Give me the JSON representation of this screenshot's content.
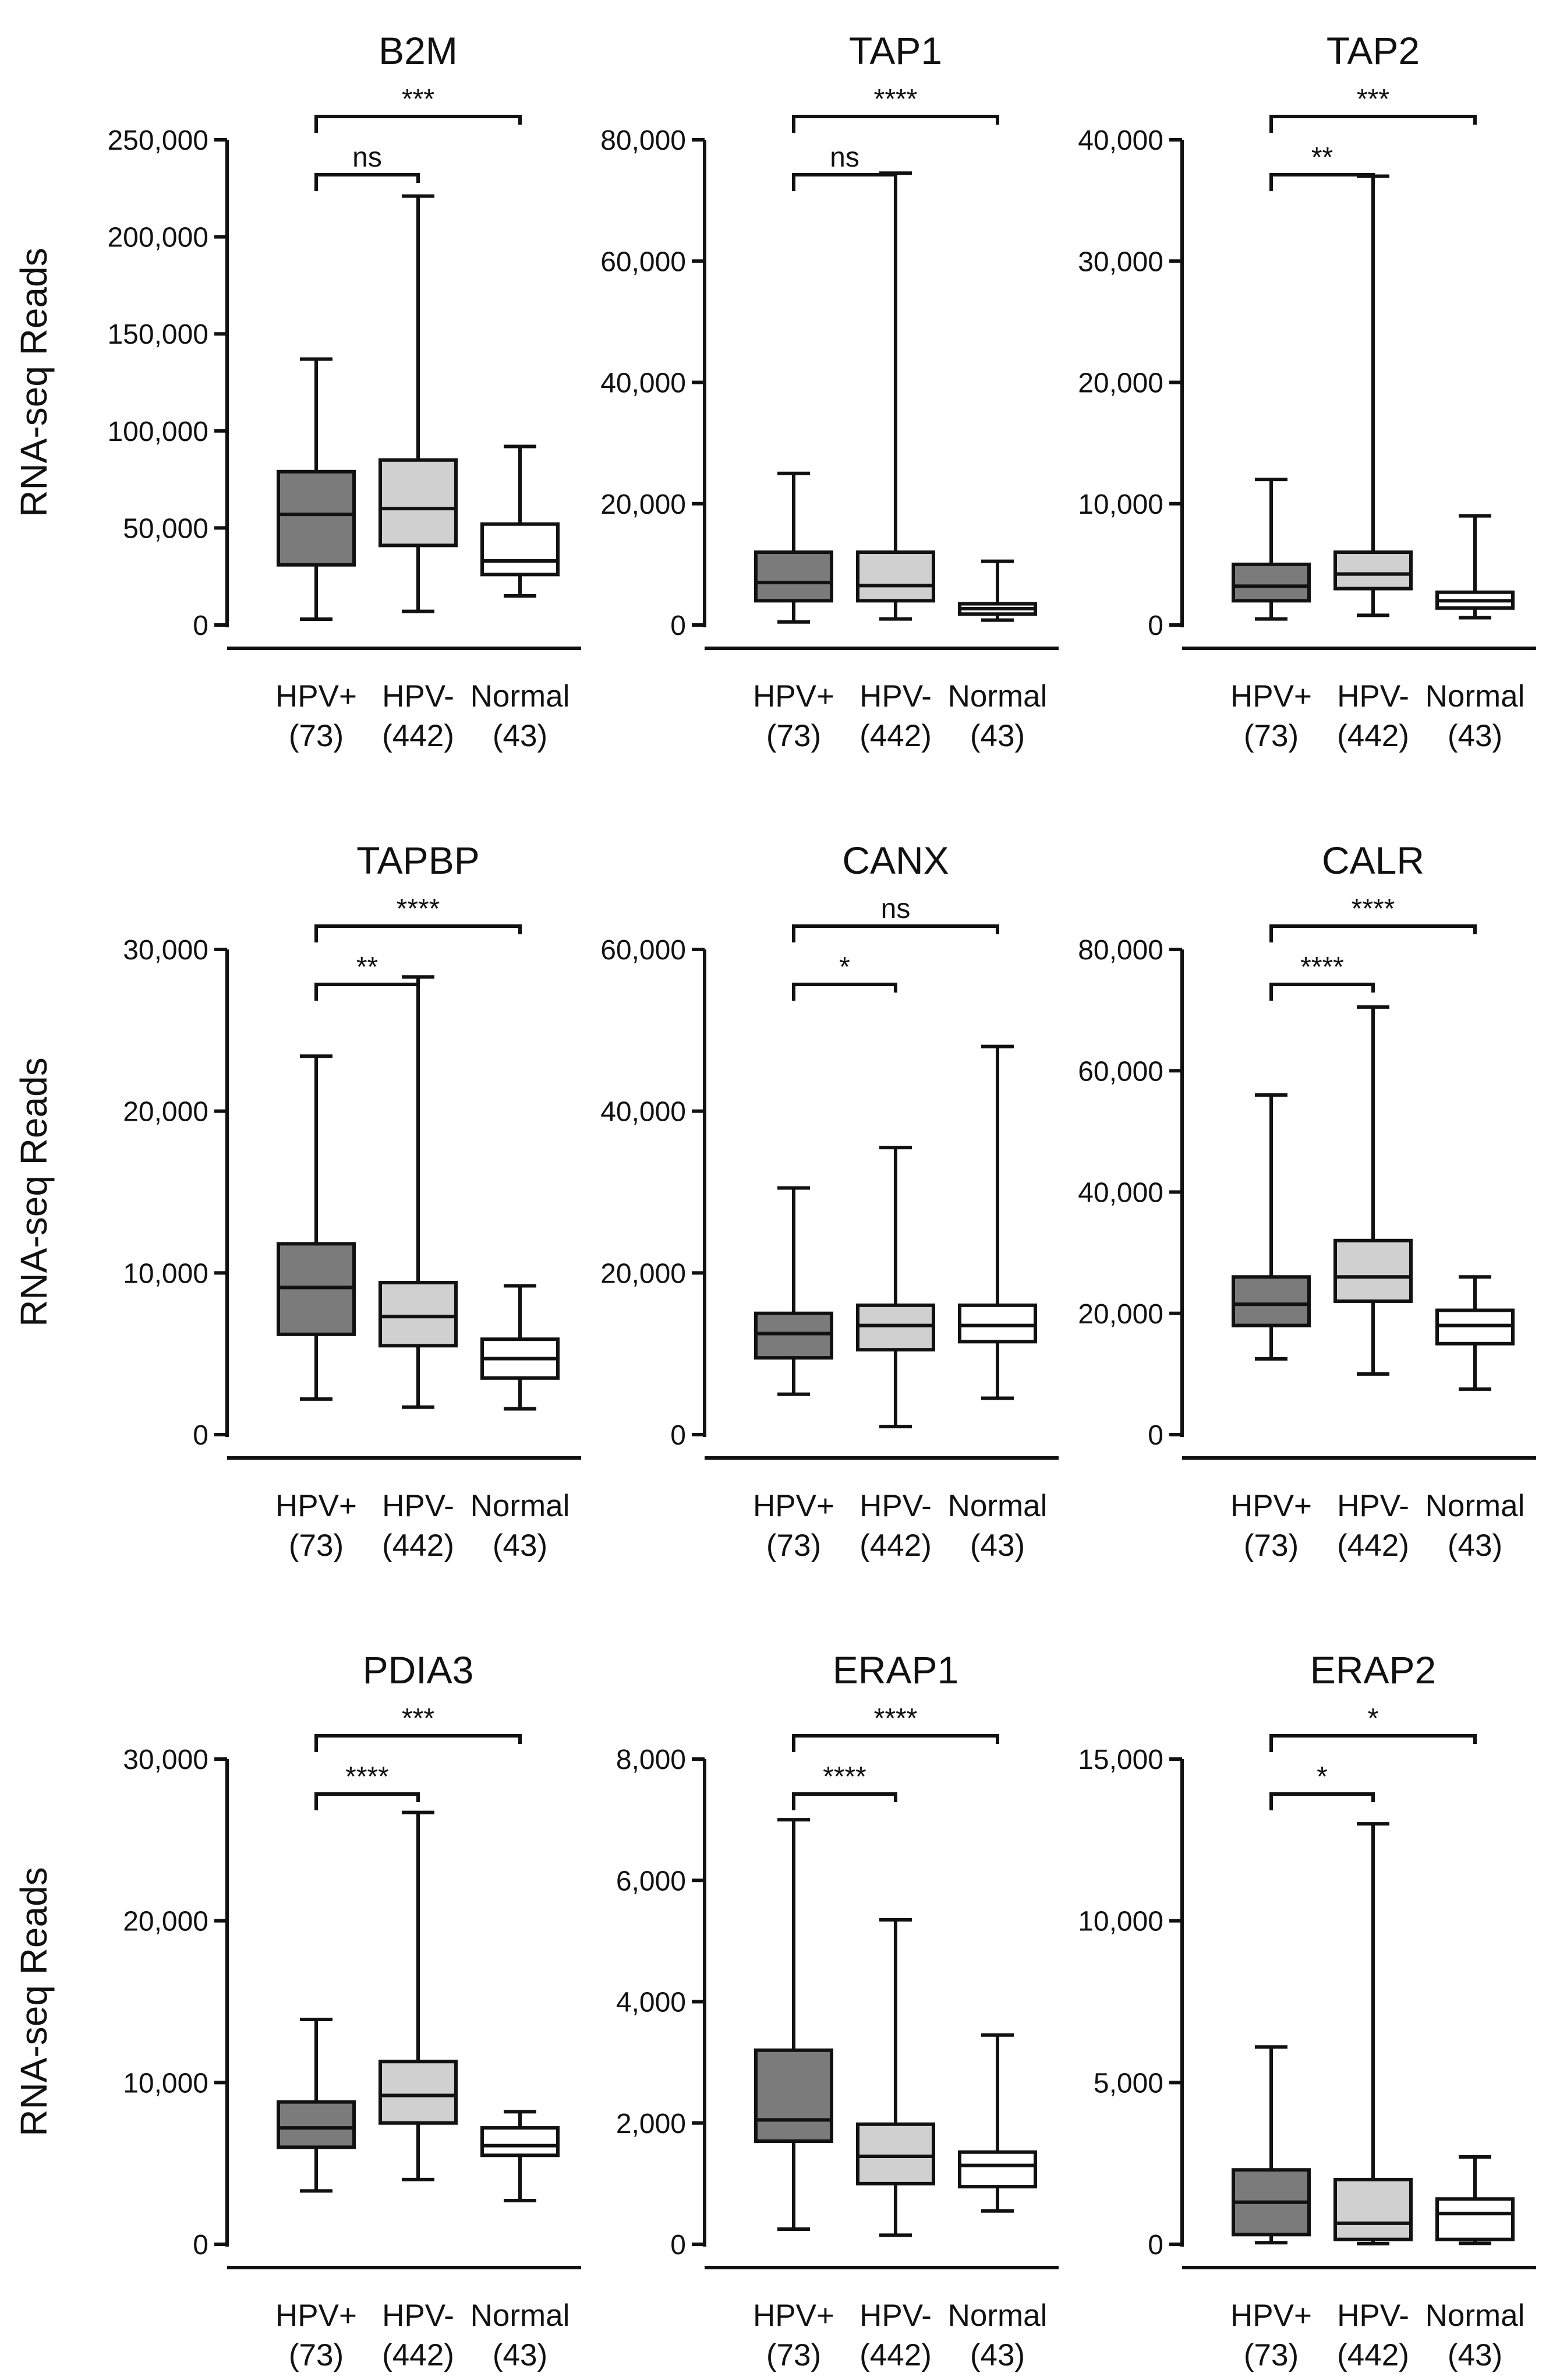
{
  "figure": {
    "ylabel": "RNA-seq Reads"
  },
  "chart_data": [
    {
      "type": "box",
      "title": "B2M",
      "ylabel": "RNA-seq Reads",
      "yticks": [
        "0",
        "50,000",
        "100,000",
        "150,000",
        "200,000",
        "250,000"
      ],
      "ylim": [
        0,
        250000
      ],
      "categories": [
        "HPV+",
        "HPV-",
        "Normal"
      ],
      "counts": [
        "(73)",
        "(442)",
        "(43)"
      ],
      "boxes": [
        {
          "min": 3000,
          "q1": 31000,
          "median": 57000,
          "q3": 79000,
          "max": 137000
        },
        {
          "min": 7000,
          "q1": 41000,
          "median": 60000,
          "q3": 85000,
          "max": 221000
        },
        {
          "min": 15000,
          "q1": 26000,
          "median": 33000,
          "q3": 52000,
          "max": 92000
        }
      ],
      "significance": [
        {
          "from": "HPV+",
          "to": "HPV-",
          "label": "ns"
        },
        {
          "from": "HPV+",
          "to": "Normal",
          "label": "***"
        }
      ]
    },
    {
      "type": "box",
      "title": "TAP1",
      "ylabel": "",
      "yticks": [
        "0",
        "20,000",
        "40,000",
        "60,000",
        "80,000"
      ],
      "ylim": [
        0,
        80000
      ],
      "categories": [
        "HPV+",
        "HPV-",
        "Normal"
      ],
      "counts": [
        "(73)",
        "(442)",
        "(43)"
      ],
      "boxes": [
        {
          "min": 500,
          "q1": 4000,
          "median": 7000,
          "q3": 12000,
          "max": 25000
        },
        {
          "min": 1000,
          "q1": 4000,
          "median": 6500,
          "q3": 12000,
          "max": 74500
        },
        {
          "min": 800,
          "q1": 1800,
          "median": 2700,
          "q3": 3500,
          "max": 10500
        }
      ],
      "significance": [
        {
          "from": "HPV+",
          "to": "HPV-",
          "label": "ns"
        },
        {
          "from": "HPV+",
          "to": "Normal",
          "label": "****"
        }
      ]
    },
    {
      "type": "box",
      "title": "TAP2",
      "ylabel": "",
      "yticks": [
        "0",
        "10,000",
        "20,000",
        "30,000",
        "40,000"
      ],
      "ylim": [
        0,
        40000
      ],
      "categories": [
        "HPV+",
        "HPV-",
        "Normal"
      ],
      "counts": [
        "(73)",
        "(442)",
        "(43)"
      ],
      "boxes": [
        {
          "min": 500,
          "q1": 2000,
          "median": 3200,
          "q3": 5000,
          "max": 12000
        },
        {
          "min": 800,
          "q1": 3000,
          "median": 4200,
          "q3": 6000,
          "max": 37000
        },
        {
          "min": 600,
          "q1": 1400,
          "median": 2000,
          "q3": 2700,
          "max": 9000
        }
      ],
      "significance": [
        {
          "from": "HPV+",
          "to": "HPV-",
          "label": "**"
        },
        {
          "from": "HPV+",
          "to": "Normal",
          "label": "***"
        }
      ]
    },
    {
      "type": "box",
      "title": "TAPBP",
      "ylabel": "RNA-seq Reads",
      "yticks": [
        "0",
        "10,000",
        "20,000",
        "30,000"
      ],
      "ylim": [
        0,
        30000
      ],
      "categories": [
        "HPV+",
        "HPV-",
        "Normal"
      ],
      "counts": [
        "(73)",
        "(442)",
        "(43)"
      ],
      "boxes": [
        {
          "min": 2200,
          "q1": 6200,
          "median": 9100,
          "q3": 11800,
          "max": 23400
        },
        {
          "min": 1700,
          "q1": 5500,
          "median": 7300,
          "q3": 9400,
          "max": 28300
        },
        {
          "min": 1600,
          "q1": 3500,
          "median": 4700,
          "q3": 5900,
          "max": 9200
        }
      ],
      "significance": [
        {
          "from": "HPV+",
          "to": "HPV-",
          "label": "**"
        },
        {
          "from": "HPV+",
          "to": "Normal",
          "label": "****"
        }
      ]
    },
    {
      "type": "box",
      "title": "CANX",
      "ylabel": "",
      "yticks": [
        "0",
        "20,000",
        "40,000",
        "60,000"
      ],
      "ylim": [
        0,
        60000
      ],
      "categories": [
        "HPV+",
        "HPV-",
        "Normal"
      ],
      "counts": [
        "(73)",
        "(442)",
        "(43)"
      ],
      "boxes": [
        {
          "min": 5000,
          "q1": 9500,
          "median": 12500,
          "q3": 15000,
          "max": 30500
        },
        {
          "min": 1000,
          "q1": 10500,
          "median": 13500,
          "q3": 16000,
          "max": 35500
        },
        {
          "min": 4500,
          "q1": 11500,
          "median": 13500,
          "q3": 16000,
          "max": 48000
        }
      ],
      "significance": [
        {
          "from": "HPV+",
          "to": "HPV-",
          "label": "*"
        },
        {
          "from": "HPV+",
          "to": "Normal",
          "label": "ns"
        }
      ]
    },
    {
      "type": "box",
      "title": "CALR",
      "ylabel": "",
      "yticks": [
        "0",
        "20,000",
        "40,000",
        "60,000",
        "80,000"
      ],
      "ylim": [
        0,
        80000
      ],
      "categories": [
        "HPV+",
        "HPV-",
        "Normal"
      ],
      "counts": [
        "(73)",
        "(442)",
        "(43)"
      ],
      "boxes": [
        {
          "min": 12500,
          "q1": 18000,
          "median": 21500,
          "q3": 26000,
          "max": 56000
        },
        {
          "min": 10000,
          "q1": 22000,
          "median": 26000,
          "q3": 32000,
          "max": 70500
        },
        {
          "min": 7500,
          "q1": 15000,
          "median": 18000,
          "q3": 20500,
          "max": 26000
        }
      ],
      "significance": [
        {
          "from": "HPV+",
          "to": "HPV-",
          "label": "****"
        },
        {
          "from": "HPV+",
          "to": "Normal",
          "label": "****"
        }
      ]
    },
    {
      "type": "box",
      "title": "PDIA3",
      "ylabel": "RNA-seq Reads",
      "yticks": [
        "0",
        "10,000",
        "20,000",
        "30,000"
      ],
      "ylim": [
        0,
        30000
      ],
      "categories": [
        "HPV+",
        "HPV-",
        "Normal"
      ],
      "counts": [
        "(73)",
        "(442)",
        "(43)"
      ],
      "boxes": [
        {
          "min": 3300,
          "q1": 6000,
          "median": 7200,
          "q3": 8800,
          "max": 13900
        },
        {
          "min": 4000,
          "q1": 7500,
          "median": 9200,
          "q3": 11300,
          "max": 26700
        },
        {
          "min": 2700,
          "q1": 5500,
          "median": 6100,
          "q3": 7200,
          "max": 8200
        }
      ],
      "significance": [
        {
          "from": "HPV+",
          "to": "HPV-",
          "label": "****"
        },
        {
          "from": "HPV+",
          "to": "Normal",
          "label": "***"
        }
      ]
    },
    {
      "type": "box",
      "title": "ERAP1",
      "ylabel": "",
      "yticks": [
        "0",
        "2,000",
        "4,000",
        "6,000",
        "8,000"
      ],
      "ylim": [
        0,
        8000
      ],
      "categories": [
        "HPV+",
        "HPV-",
        "Normal"
      ],
      "counts": [
        "(73)",
        "(442)",
        "(43)"
      ],
      "boxes": [
        {
          "min": 250,
          "q1": 1700,
          "median": 2050,
          "q3": 3200,
          "max": 7000
        },
        {
          "min": 150,
          "q1": 1000,
          "median": 1450,
          "q3": 1980,
          "max": 5350
        },
        {
          "min": 550,
          "q1": 950,
          "median": 1300,
          "q3": 1520,
          "max": 3450
        }
      ],
      "significance": [
        {
          "from": "HPV+",
          "to": "HPV-",
          "label": "****"
        },
        {
          "from": "HPV+",
          "to": "Normal",
          "label": "****"
        }
      ]
    },
    {
      "type": "box",
      "title": "ERAP2",
      "ylabel": "",
      "yticks": [
        "0",
        "5,000",
        "10,000",
        "15,000"
      ],
      "ylim": [
        0,
        15000
      ],
      "categories": [
        "HPV+",
        "HPV-",
        "Normal"
      ],
      "counts": [
        "(73)",
        "(442)",
        "(43)"
      ],
      "boxes": [
        {
          "min": 50,
          "q1": 300,
          "median": 1300,
          "q3": 2300,
          "max": 6100
        },
        {
          "min": 20,
          "q1": 150,
          "median": 650,
          "q3": 2000,
          "max": 13000
        },
        {
          "min": 30,
          "q1": 150,
          "median": 950,
          "q3": 1400,
          "max": 2700
        }
      ],
      "significance": [
        {
          "from": "HPV+",
          "to": "HPV-",
          "label": "*"
        },
        {
          "from": "HPV+",
          "to": "Normal",
          "label": "*"
        }
      ]
    }
  ],
  "colors": {
    "hpv_pos_fill": "#7b7b7b",
    "hpv_neg_fill": "#d0d0d0",
    "normal_fill": "#ffffff",
    "stroke": "#111111"
  }
}
